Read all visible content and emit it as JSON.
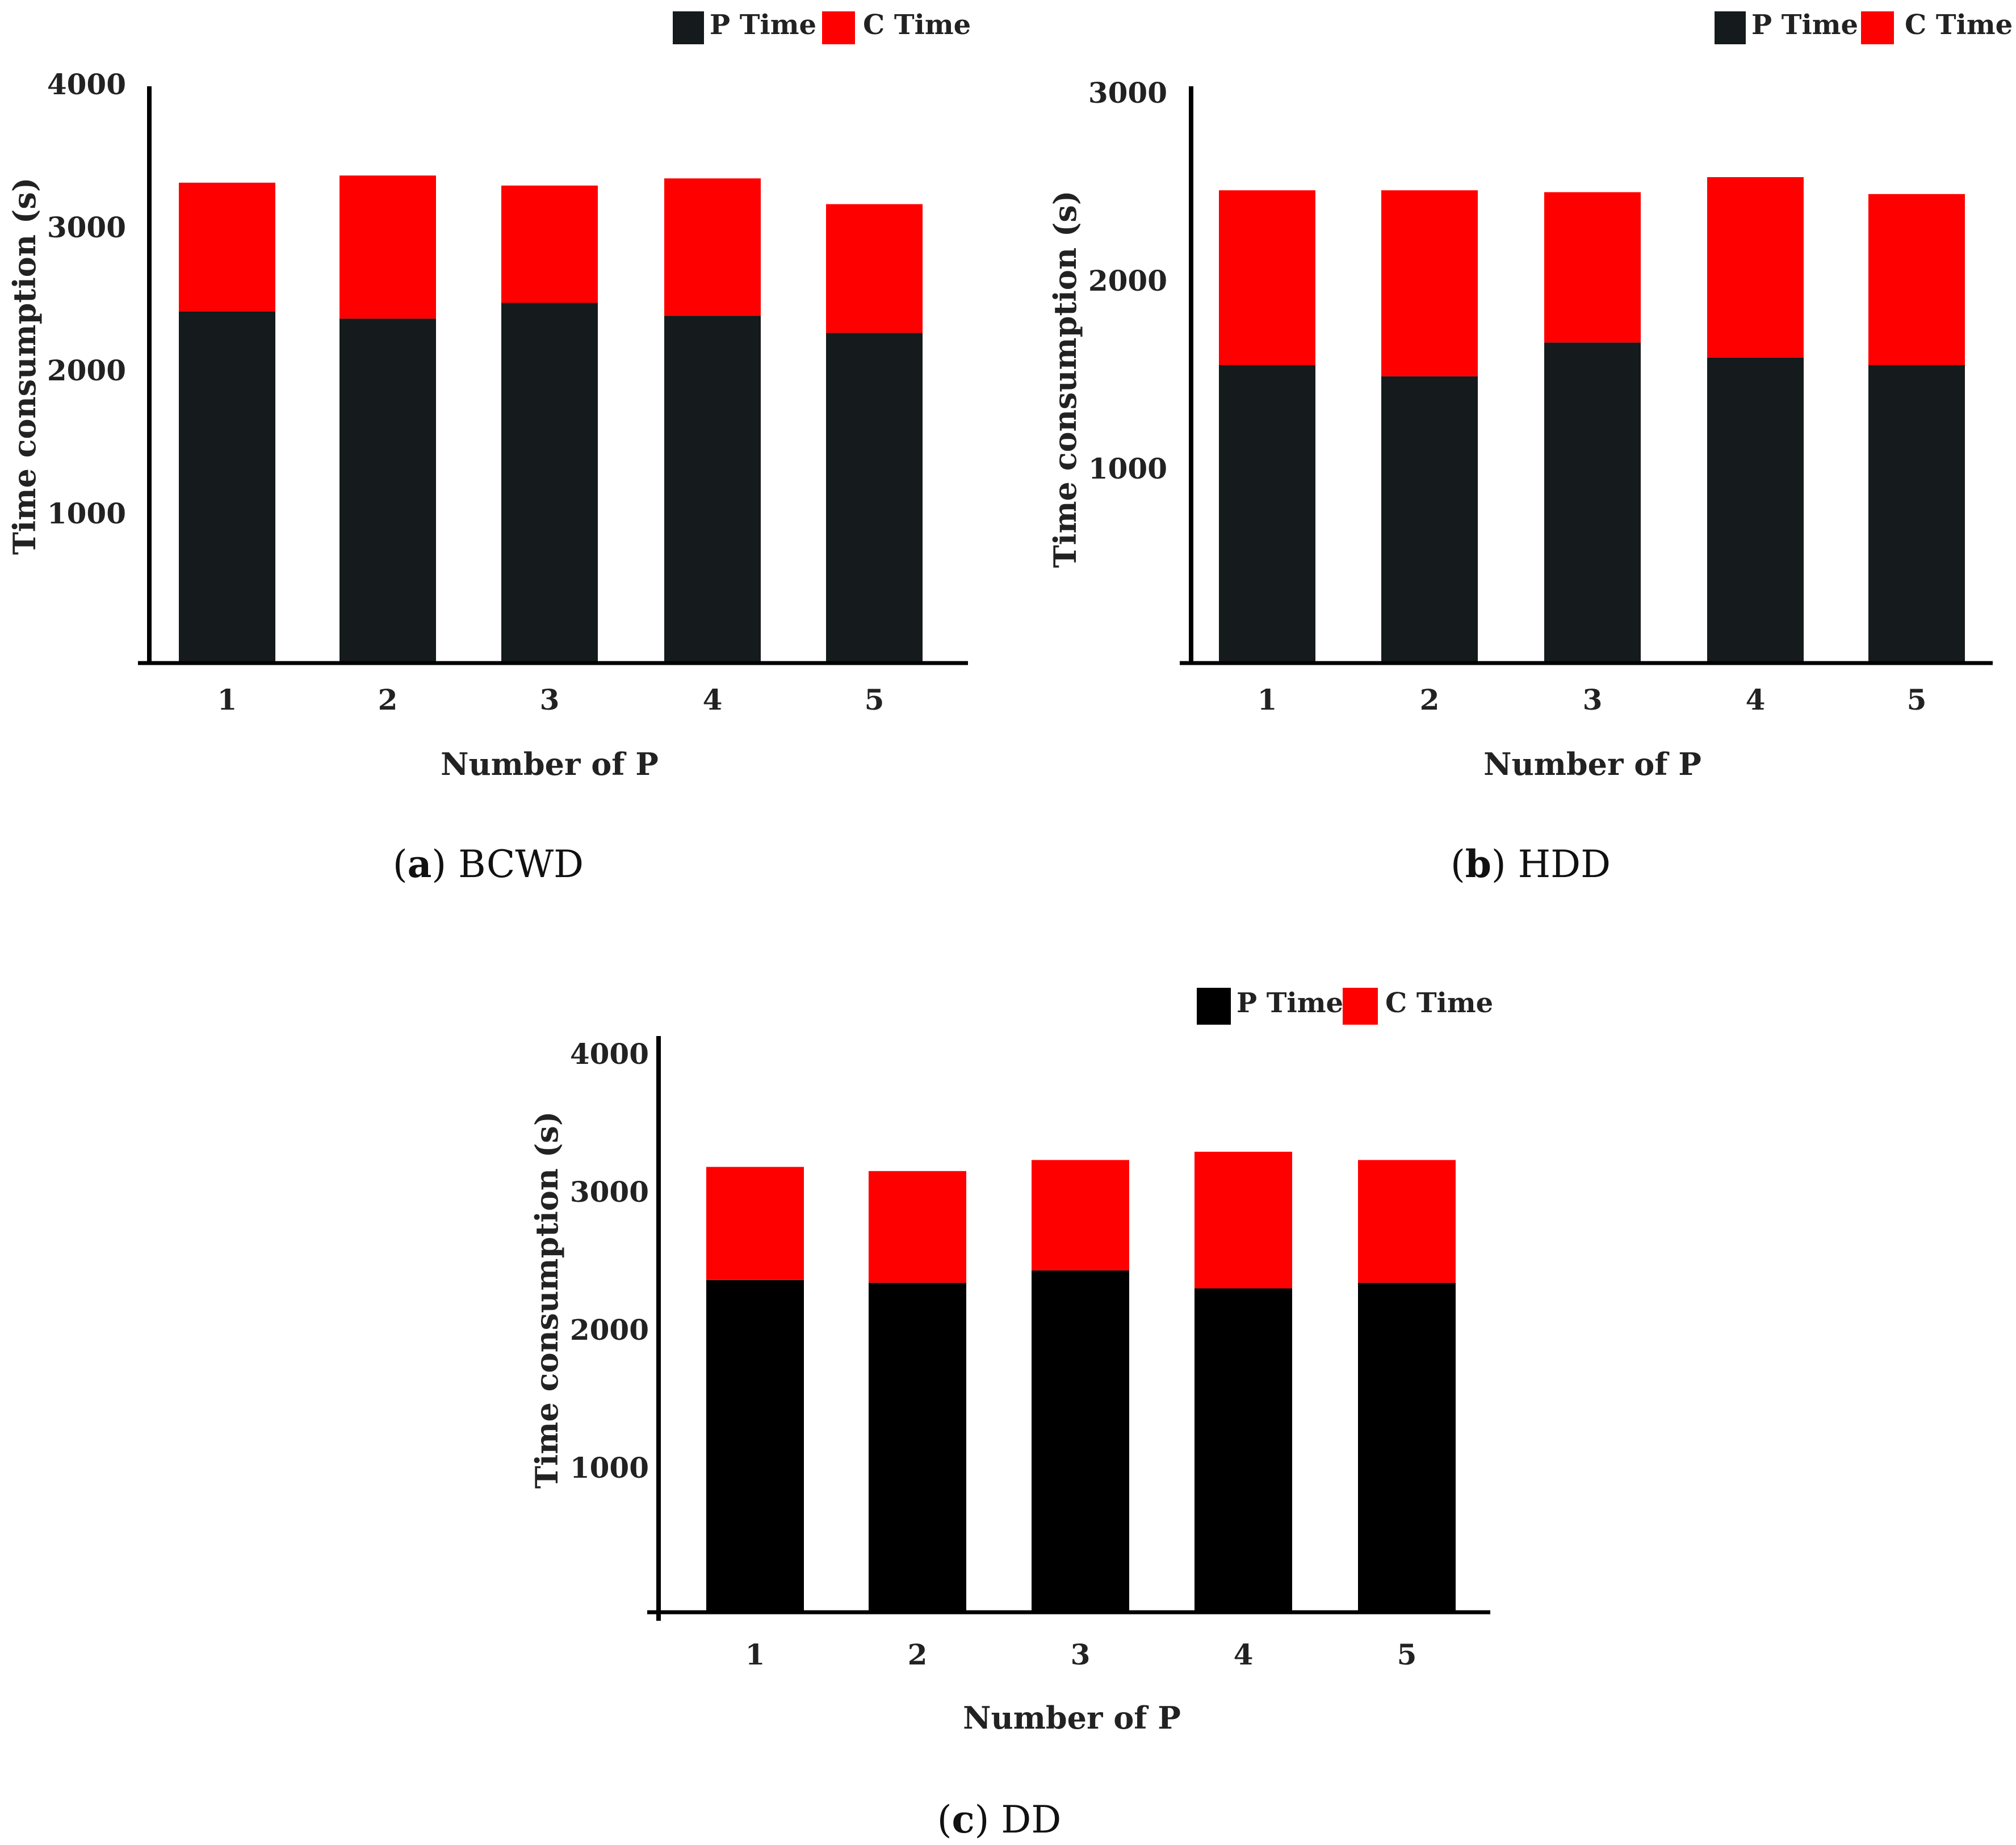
{
  "chart_data": [
    {
      "id": "a",
      "type": "bar",
      "stacked": true,
      "caption_letter": "a",
      "caption_text": "BCWD",
      "categories": [
        "1",
        "2",
        "3",
        "4",
        "5"
      ],
      "series": [
        {
          "name": "P Time",
          "values": [
            2450,
            2400,
            2510,
            2420,
            2300
          ]
        },
        {
          "name": "C Time",
          "values": [
            900,
            1000,
            820,
            960,
            900
          ]
        }
      ],
      "xlabel": "Number of P",
      "ylabel": "Time consumption (s)",
      "ylim": [
        0,
        4000
      ],
      "yticks": [
        "1000",
        "2000",
        "3000",
        "4000"
      ],
      "yticks_values": [
        1000,
        2000,
        3000,
        4000
      ],
      "legend": [
        "P Time",
        "C Time"
      ],
      "legend_position": "top-right"
    },
    {
      "id": "b",
      "type": "bar",
      "stacked": true,
      "caption_letter": "b",
      "caption_text": "HDD",
      "categories": [
        "1",
        "2",
        "3",
        "4",
        "5"
      ],
      "series": [
        {
          "name": "P Time",
          "values": [
            1580,
            1520,
            1700,
            1620,
            1580
          ]
        },
        {
          "name": "C Time",
          "values": [
            930,
            990,
            800,
            960,
            910
          ]
        }
      ],
      "xlabel": "Number of P",
      "ylabel": "Time consumption (s)",
      "ylim": [
        0,
        3000
      ],
      "yticks": [
        "1000",
        "2000",
        "3000"
      ],
      "yticks_values": [
        1000,
        2000,
        3000
      ],
      "legend": [
        "P Time",
        "C Time"
      ],
      "legend_position": "top-right"
    },
    {
      "id": "c",
      "type": "bar",
      "stacked": true,
      "caption_letter": "c",
      "caption_text": "DD",
      "categories": [
        "1",
        "2",
        "3",
        "4",
        "5"
      ],
      "series": [
        {
          "name": "P Time",
          "values": [
            2400,
            2380,
            2470,
            2340,
            2380
          ]
        },
        {
          "name": "C Time",
          "values": [
            820,
            810,
            800,
            990,
            890
          ]
        }
      ],
      "xlabel": "Number of P",
      "ylabel": "Time consumption (s)",
      "ylim": [
        0,
        4000
      ],
      "yticks": [
        "1000",
        "2000",
        "3000",
        "4000"
      ],
      "yticks_values": [
        1000,
        2000,
        3000,
        4000
      ],
      "legend": [
        "P Time",
        "C Time"
      ],
      "legend_position": "top-right"
    }
  ],
  "colors": {
    "p_time": "#151a1c",
    "c_time": "#ff0000",
    "p_time_c": "#000000",
    "axis": "#000000"
  }
}
